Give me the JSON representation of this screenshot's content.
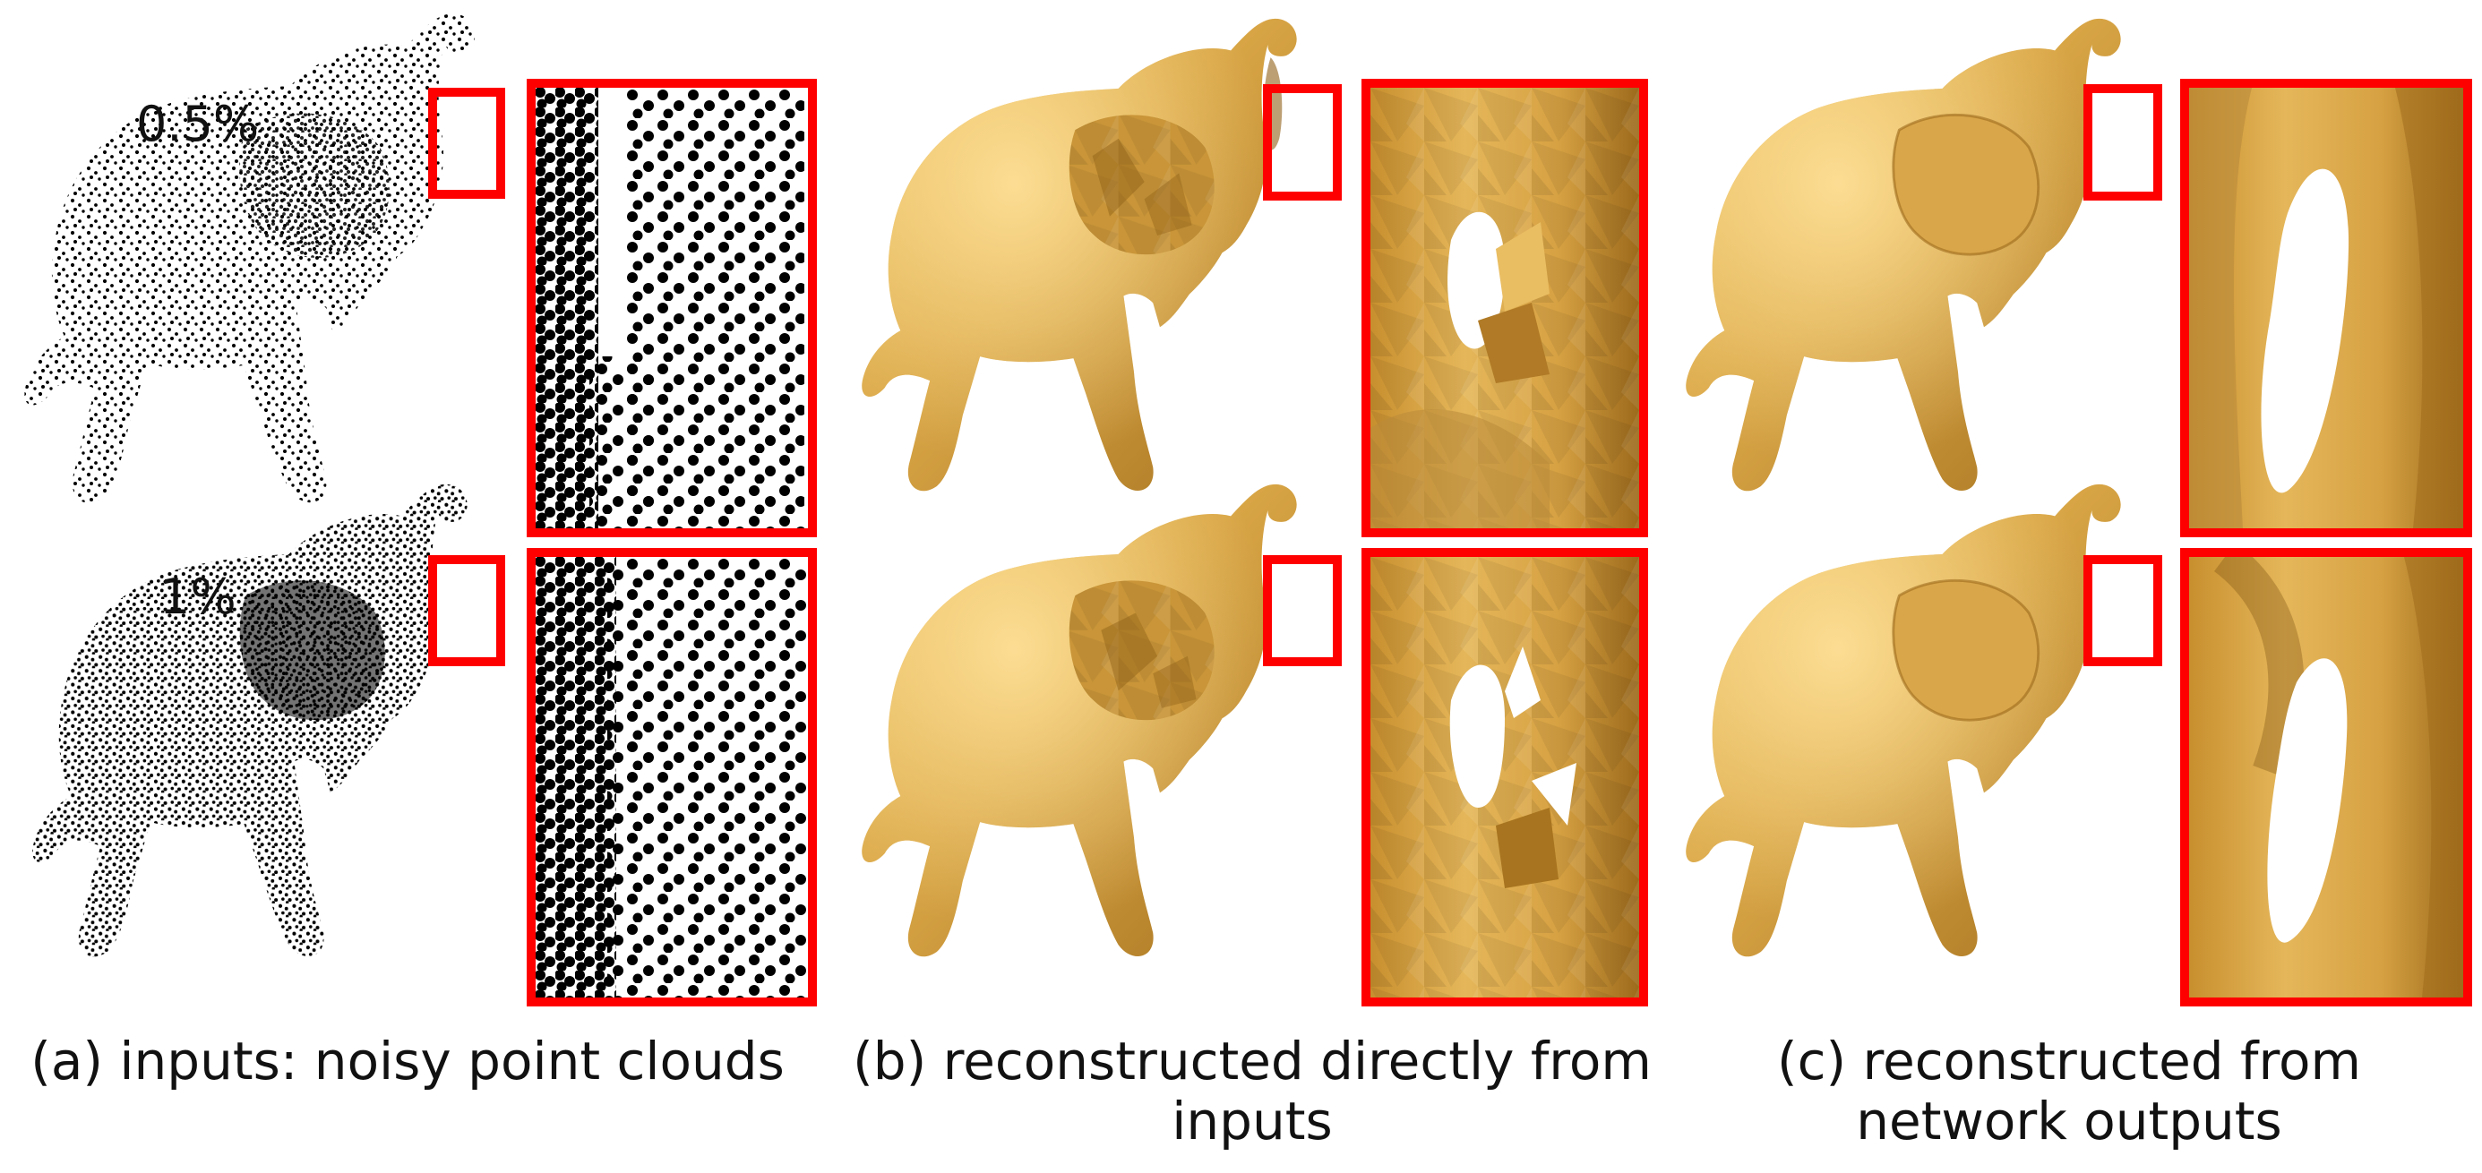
{
  "noise_levels": [
    "0.5%",
    "1%"
  ],
  "captions": {
    "a": "(a) inputs: noisy point clouds",
    "b": "(b) reconstructed directly from inputs",
    "c": "(c) reconstructed from network outputs"
  },
  "colors": {
    "highlight_box": "#ff0000",
    "mesh": "#d6a545",
    "points": "#000000",
    "background": "#ffffff"
  }
}
